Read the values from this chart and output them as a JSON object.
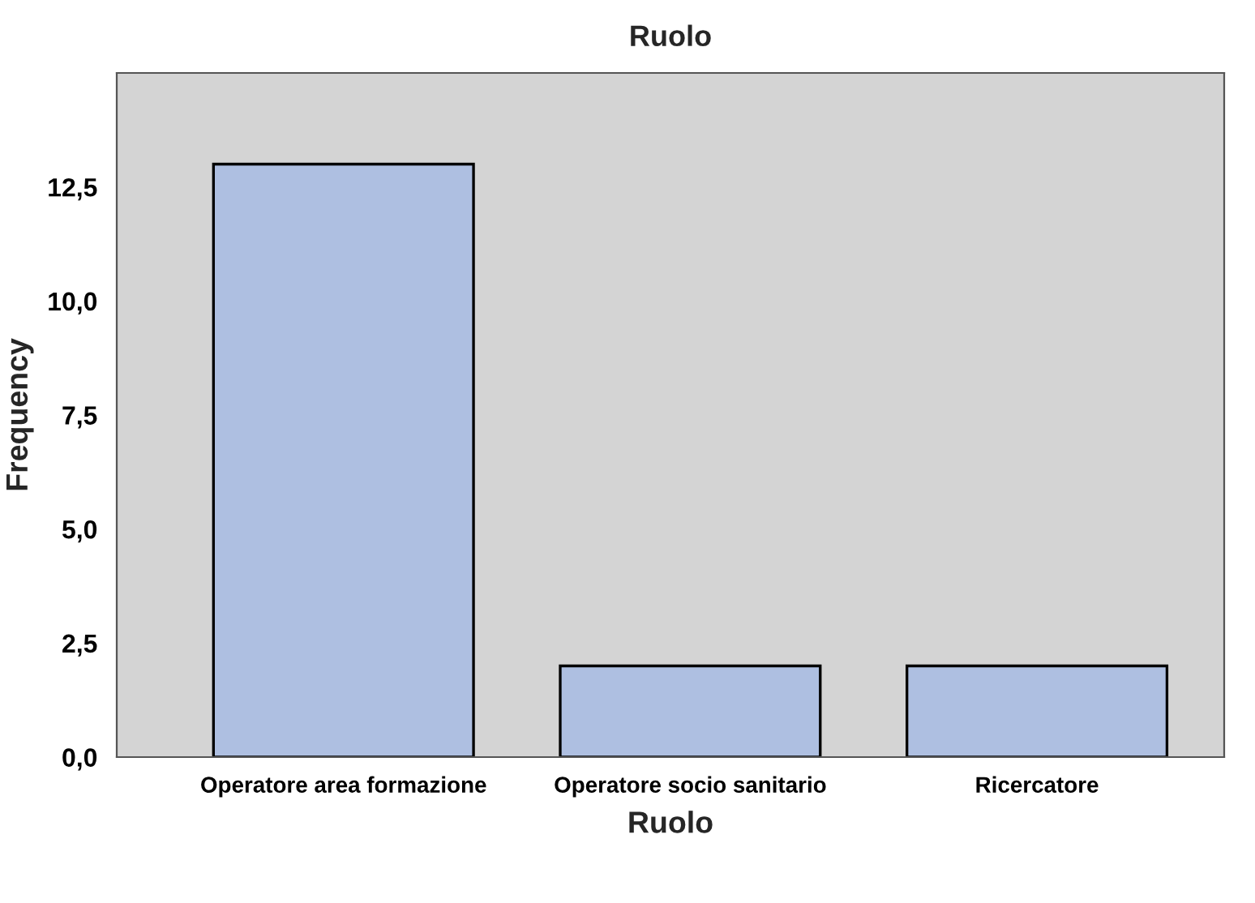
{
  "chart_data": {
    "type": "bar",
    "title": "Ruolo",
    "xlabel": "Ruolo",
    "ylabel": "Frequency",
    "categories": [
      "Operatore area formazione",
      "Operatore socio sanitario",
      "Ricercatore"
    ],
    "values": [
      13,
      2,
      2
    ],
    "color": "#aebfe1",
    "ylim": [
      0,
      15
    ],
    "yticks": [
      {
        "value": 0,
        "label": "0,0"
      },
      {
        "value": 2.5,
        "label": "2,5"
      },
      {
        "value": 5,
        "label": "5,0"
      },
      {
        "value": 7.5,
        "label": "7,5"
      },
      {
        "value": 10,
        "label": "10,0"
      },
      {
        "value": 12.5,
        "label": "12,5"
      }
    ],
    "grid": false
  }
}
